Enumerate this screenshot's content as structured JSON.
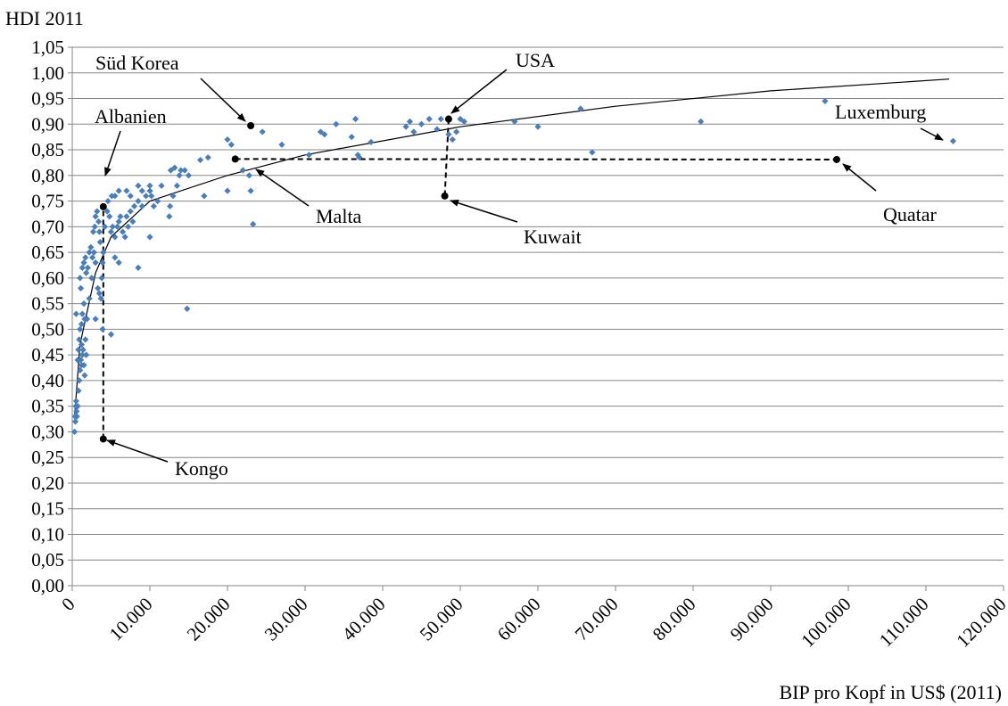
{
  "chart_data": {
    "type": "scatter",
    "ylabel": "HDI 2011",
    "xlabel": "BIP pro Kopf in US$ (2011)",
    "xlim": [
      0,
      120000
    ],
    "ylim": [
      0,
      1.05
    ],
    "x_ticks": [
      0,
      10000,
      20000,
      30000,
      40000,
      50000,
      60000,
      70000,
      80000,
      90000,
      100000,
      110000,
      120000
    ],
    "x_tick_labels": [
      "0",
      "10.000",
      "20.000",
      "30.000",
      "40.000",
      "50.000",
      "60.000",
      "70.000",
      "80.000",
      "90.000",
      "100.000",
      "110.000",
      "120.000"
    ],
    "y_ticks": [
      0,
      0.05,
      0.1,
      0.15,
      0.2,
      0.25,
      0.3,
      0.35,
      0.4,
      0.45,
      0.5,
      0.55,
      0.6,
      0.65,
      0.7,
      0.75,
      0.8,
      0.85,
      0.9,
      0.95,
      1.0,
      1.05
    ],
    "y_tick_labels": [
      "0,00",
      "0,05",
      "0,10",
      "0,15",
      "0,20",
      "0,25",
      "0,30",
      "0,35",
      "0,40",
      "0,45",
      "0,50",
      "0,55",
      "0,60",
      "0,65",
      "0,70",
      "0,75",
      "0,80",
      "0,85",
      "0,90",
      "0,95",
      "1,00",
      "1,05"
    ],
    "grid": "horizontal",
    "marker_color": "#4a7ebb",
    "trendline": {
      "type": "logarithmic",
      "x": [
        300,
        1000,
        3000,
        5000,
        10000,
        20000,
        30000,
        50000,
        70000,
        90000,
        113000
      ],
      "y": [
        0.33,
        0.47,
        0.61,
        0.68,
        0.75,
        0.8,
        0.84,
        0.895,
        0.935,
        0.965,
        0.988
      ]
    },
    "points": [
      [
        300,
        0.3
      ],
      [
        350,
        0.33
      ],
      [
        400,
        0.32
      ],
      [
        450,
        0.35
      ],
      [
        500,
        0.36
      ],
      [
        550,
        0.34
      ],
      [
        600,
        0.33
      ],
      [
        700,
        0.35
      ],
      [
        800,
        0.38
      ],
      [
        900,
        0.4
      ],
      [
        1000,
        0.42
      ],
      [
        1100,
        0.44
      ],
      [
        1200,
        0.43
      ],
      [
        1300,
        0.45
      ],
      [
        700,
        0.44
      ],
      [
        800,
        0.46
      ],
      [
        900,
        0.48
      ],
      [
        1000,
        0.5
      ],
      [
        1200,
        0.47
      ],
      [
        1400,
        0.46
      ],
      [
        1500,
        0.43
      ],
      [
        1600,
        0.41
      ],
      [
        1700,
        0.48
      ],
      [
        1800,
        0.45
      ],
      [
        1200,
        0.51
      ],
      [
        1300,
        0.53
      ],
      [
        1500,
        0.55
      ],
      [
        1600,
        0.52
      ],
      [
        500,
        0.53
      ],
      [
        1000,
        0.6
      ],
      [
        1100,
        0.58
      ],
      [
        1300,
        0.62
      ],
      [
        1500,
        0.63
      ],
      [
        1700,
        0.64
      ],
      [
        1800,
        0.61
      ],
      [
        2000,
        0.62
      ],
      [
        2200,
        0.65
      ],
      [
        2400,
        0.66
      ],
      [
        2600,
        0.64
      ],
      [
        2800,
        0.65
      ],
      [
        3000,
        0.63
      ],
      [
        1900,
        0.52
      ],
      [
        2200,
        0.56
      ],
      [
        2500,
        0.6
      ],
      [
        2700,
        0.69
      ],
      [
        2900,
        0.7
      ],
      [
        3000,
        0.72
      ],
      [
        3200,
        0.73
      ],
      [
        3400,
        0.71
      ],
      [
        3500,
        0.69
      ],
      [
        3600,
        0.67
      ],
      [
        3300,
        0.58
      ],
      [
        3500,
        0.57
      ],
      [
        3700,
        0.56
      ],
      [
        3000,
        0.52
      ],
      [
        3900,
        0.5
      ],
      [
        5000,
        0.49
      ],
      [
        3800,
        0.6
      ],
      [
        3900,
        0.63
      ],
      [
        4000,
        0.65
      ],
      [
        4200,
        0.7
      ],
      [
        4500,
        0.73
      ],
      [
        4800,
        0.72
      ],
      [
        5000,
        0.69
      ],
      [
        5200,
        0.7
      ],
      [
        5500,
        0.68
      ],
      [
        5800,
        0.7
      ],
      [
        6000,
        0.71
      ],
      [
        6200,
        0.72
      ],
      [
        6500,
        0.69
      ],
      [
        6800,
        0.68
      ],
      [
        7000,
        0.72
      ],
      [
        7200,
        0.7
      ],
      [
        7500,
        0.73
      ],
      [
        7800,
        0.71
      ],
      [
        4600,
        0.75
      ],
      [
        5100,
        0.76
      ],
      [
        5500,
        0.76
      ],
      [
        6000,
        0.77
      ],
      [
        7000,
        0.77
      ],
      [
        7500,
        0.76
      ],
      [
        8000,
        0.74
      ],
      [
        8500,
        0.75
      ],
      [
        9000,
        0.74
      ],
      [
        9500,
        0.76
      ],
      [
        10000,
        0.77
      ],
      [
        10500,
        0.74
      ],
      [
        11000,
        0.75
      ],
      [
        11500,
        0.78
      ],
      [
        8500,
        0.78
      ],
      [
        9000,
        0.77
      ],
      [
        10000,
        0.78
      ],
      [
        10200,
        0.76
      ],
      [
        5500,
        0.64
      ],
      [
        6000,
        0.63
      ],
      [
        8500,
        0.62
      ],
      [
        10000,
        0.68
      ],
      [
        12500,
        0.72
      ],
      [
        12600,
        0.74
      ],
      [
        13000,
        0.76
      ],
      [
        13500,
        0.78
      ],
      [
        13800,
        0.8
      ],
      [
        14000,
        0.81
      ],
      [
        14500,
        0.81
      ],
      [
        15000,
        0.8
      ],
      [
        12700,
        0.81
      ],
      [
        13200,
        0.815
      ],
      [
        16500,
        0.83
      ],
      [
        17500,
        0.835
      ],
      [
        17000,
        0.76
      ],
      [
        14800,
        0.54
      ],
      [
        20000,
        0.87
      ],
      [
        20500,
        0.86
      ],
      [
        20000,
        0.77
      ],
      [
        22000,
        0.81
      ],
      [
        22800,
        0.8
      ],
      [
        23000,
        0.77
      ],
      [
        23300,
        0.705
      ],
      [
        24500,
        0.885
      ],
      [
        27000,
        0.86
      ],
      [
        30500,
        0.84
      ],
      [
        32000,
        0.885
      ],
      [
        32500,
        0.88
      ],
      [
        34000,
        0.9
      ],
      [
        36000,
        0.875
      ],
      [
        36500,
        0.91
      ],
      [
        36800,
        0.84
      ],
      [
        37000,
        0.835
      ],
      [
        38500,
        0.865
      ],
      [
        43000,
        0.895
      ],
      [
        43500,
        0.905
      ],
      [
        44000,
        0.885
      ],
      [
        45000,
        0.9
      ],
      [
        46000,
        0.91
      ],
      [
        47000,
        0.89
      ],
      [
        47500,
        0.91
      ],
      [
        48500,
        0.88
      ],
      [
        49000,
        0.87
      ],
      [
        49500,
        0.885
      ],
      [
        50000,
        0.91
      ],
      [
        50500,
        0.905
      ],
      [
        57000,
        0.905
      ],
      [
        60000,
        0.895
      ],
      [
        65500,
        0.93
      ],
      [
        67000,
        0.845
      ],
      [
        81000,
        0.905
      ],
      [
        97000,
        0.945
      ]
    ],
    "highlighted": [
      {
        "name": "Kongo",
        "x": 4000,
        "y": 0.286
      },
      {
        "name": "Albanien",
        "x": 4000,
        "y": 0.739
      },
      {
        "name": "Süd Korea",
        "x": 23000,
        "y": 0.897
      },
      {
        "name": "Malta",
        "x": 21000,
        "y": 0.832
      },
      {
        "name": "USA",
        "x": 48500,
        "y": 0.91
      },
      {
        "name": "Kuwait",
        "x": 48000,
        "y": 0.76
      },
      {
        "name": "Quatar",
        "x": 98500,
        "y": 0.831
      },
      {
        "name": "Luxemburg",
        "x": 113500,
        "y": 0.867
      }
    ],
    "dashed_connectors": [
      {
        "from": [
          4000,
          0.286
        ],
        "to": [
          4000,
          0.739
        ]
      },
      {
        "from": [
          21000,
          0.832
        ],
        "to": [
          98500,
          0.831
        ]
      },
      {
        "from": [
          48500,
          0.91
        ],
        "to": [
          48000,
          0.76
        ]
      }
    ],
    "annotations": [
      {
        "text": "Süd Korea",
        "target": "Süd Korea"
      },
      {
        "text": "USA",
        "target": "USA"
      },
      {
        "text": "Albanien",
        "target": "Albanien"
      },
      {
        "text": "Luxemburg",
        "target": "Luxemburg"
      },
      {
        "text": "Malta",
        "target": "Malta"
      },
      {
        "text": "Kuwait",
        "target": "Kuwait"
      },
      {
        "text": "Quatar",
        "target": "Quatar"
      },
      {
        "text": "Kongo",
        "target": "Kongo"
      }
    ]
  }
}
